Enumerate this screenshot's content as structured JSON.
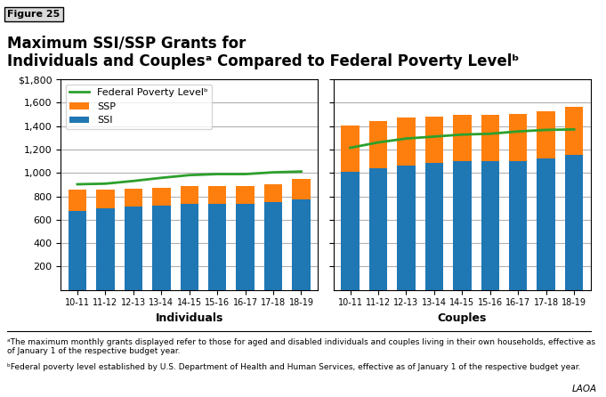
{
  "figure_label": "Figure 25",
  "title": "Maximum SSI/SSP Grants for\nIndividuals and Couplesᵃ Compared to Federal Poverty Levelᵇ",
  "footnotes": [
    "ᵃThe maximum monthly grants displayed refer to those for aged and disabled individuals and couples living in their own households, effective as of January 1 of the respective budget year.",
    "ᵇFederal poverty level established by U.S. Department of Health and Human Services, effective as of January 1 of the respective budget year."
  ],
  "credit": "LAOA",
  "chart_data": [
    {
      "type": "bar",
      "xlabel": "Individuals",
      "stacked": true,
      "grid": true,
      "legend": "upper left",
      "categories": [
        "10-11",
        "11-12",
        "12-13",
        "13-14",
        "14-15",
        "15-16",
        "16-17",
        "17-18",
        "18-19"
      ],
      "ylim": [
        0,
        1800
      ],
      "yticks": [
        200,
        400,
        600,
        800,
        {
          "value": 1000,
          "label": "1,000"
        },
        {
          "value": 1200,
          "label": "1,200"
        },
        {
          "value": 1400,
          "label": "1,400"
        },
        {
          "value": 1600,
          "label": "1,600"
        },
        {
          "value": 1800,
          "label": "$1,800"
        }
      ],
      "series": [
        {
          "name": "SSI",
          "type": "bar",
          "values": [
            674,
            694,
            710,
            721,
            733,
            733,
            735,
            750,
            771
          ]
        },
        {
          "name": "SSP",
          "type": "bar",
          "values": [
            180,
            162,
            156,
            153,
            156,
            156,
            156,
            156,
            179
          ]
        },
        {
          "name": "Federal Poverty Levelᵇ",
          "type": "line",
          "values": [
            903,
            908,
            931,
            958,
            981,
            990,
            990,
            1005,
            1012
          ]
        }
      ]
    },
    {
      "type": "bar",
      "xlabel": "Couples",
      "stacked": true,
      "grid": true,
      "tick_labels": "x",
      "categories": [
        "10-11",
        "11-12",
        "12-13",
        "13-14",
        "14-15",
        "15-16",
        "16-17",
        "17-18",
        "18-19"
      ],
      "ylim": [
        0,
        1800
      ],
      "yticks": [
        200,
        400,
        600,
        800,
        1000,
        1200,
        1400,
        1600,
        1800
      ],
      "series": [
        {
          "name": "SSI",
          "type": "bar",
          "values": [
            1011,
            1041,
            1066,
            1082,
            1100,
            1100,
            1103,
            1125,
            1157
          ]
        },
        {
          "name": "SSP",
          "type": "bar",
          "values": [
            393,
            403,
            407,
            400,
            400,
            400,
            400,
            400,
            411
          ]
        },
        {
          "name": "Federal Poverty Levelᵇ",
          "type": "line",
          "values": [
            1215,
            1261,
            1294,
            1311,
            1328,
            1335,
            1355,
            1368,
            1372
          ]
        }
      ]
    }
  ]
}
